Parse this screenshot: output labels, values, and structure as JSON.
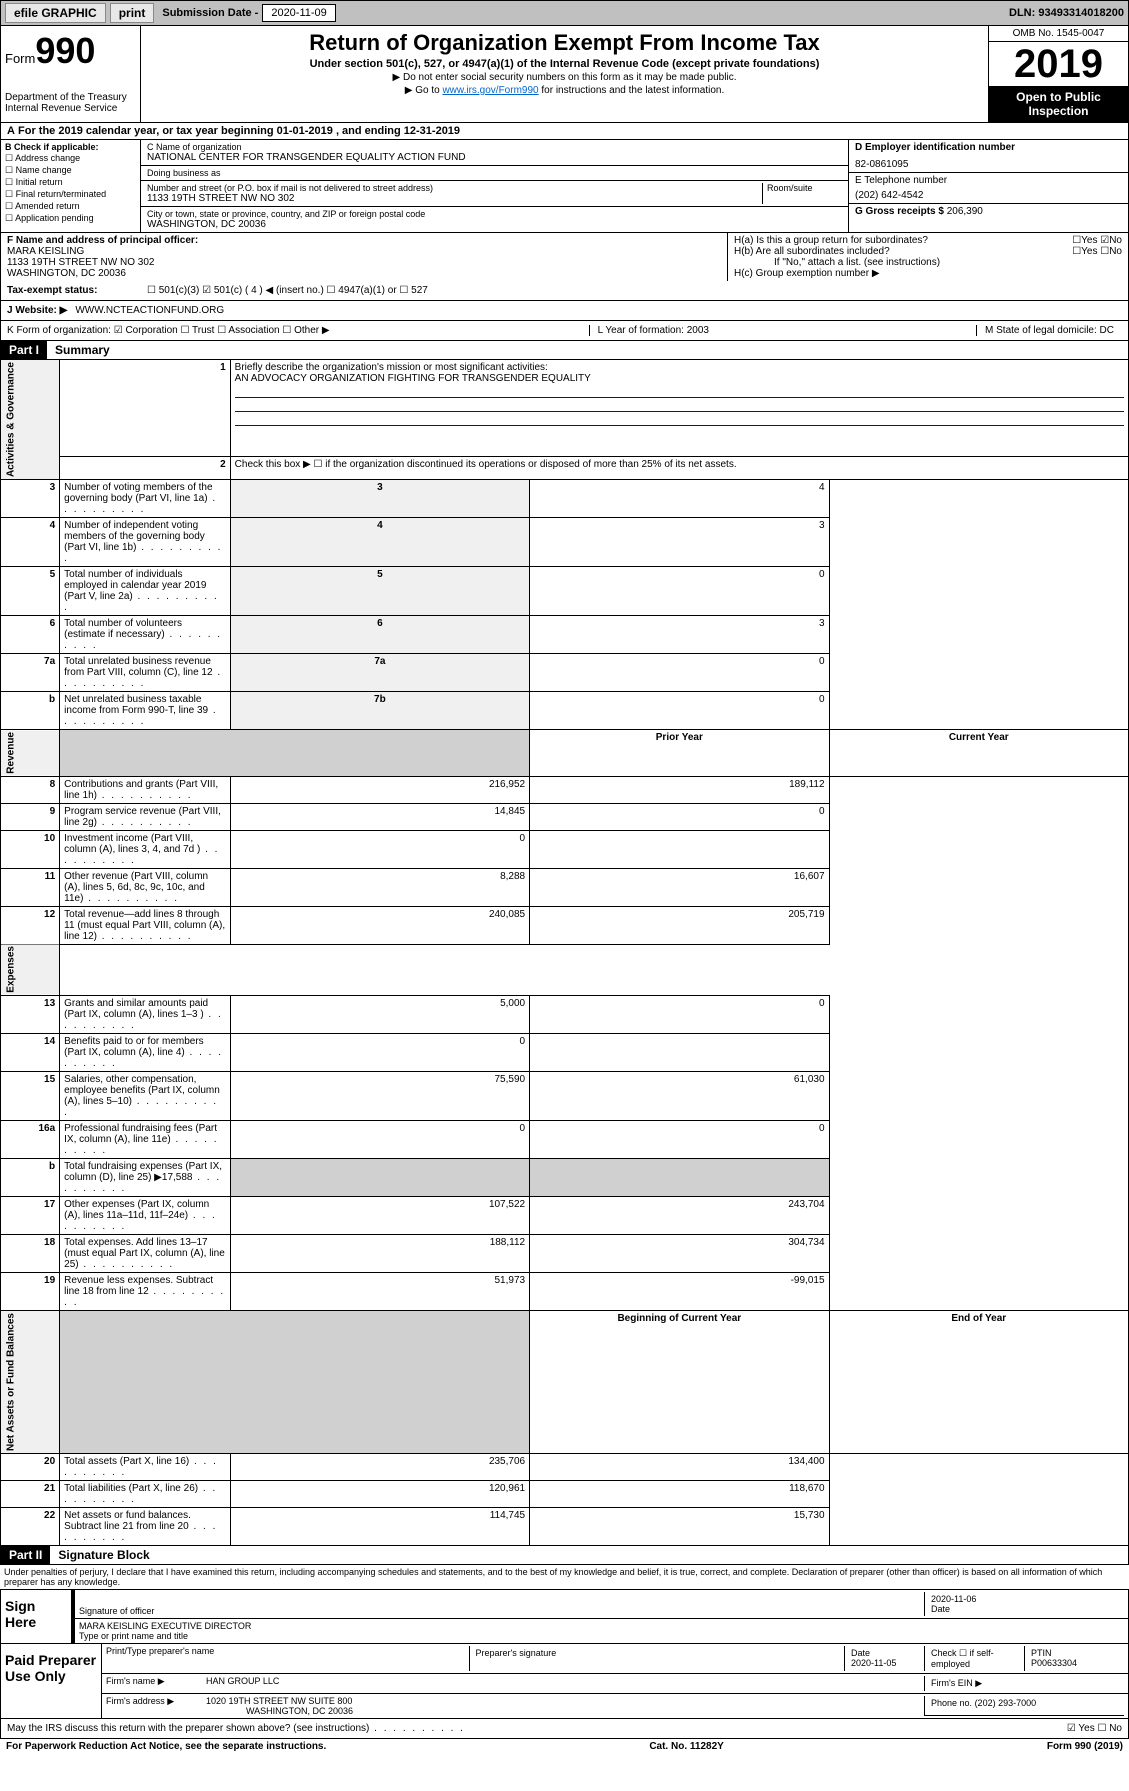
{
  "topbar": {
    "efile": "efile GRAPHIC",
    "print": "print",
    "sub_label": "Submission Date -",
    "sub_date": "2020-11-09",
    "dln": "DLN: 93493314018200"
  },
  "header": {
    "form": "Form",
    "num": "990",
    "dept": "Department of the Treasury\nInternal Revenue Service",
    "title": "Return of Organization Exempt From Income Tax",
    "sub": "Under section 501(c), 527, or 4947(a)(1) of the Internal Revenue Code (except private foundations)",
    "note1": "▶ Do not enter social security numbers on this form as it may be made public.",
    "note2a": "▶ Go to ",
    "note2link": "www.irs.gov/Form990",
    "note2b": " for instructions and the latest information.",
    "omb": "OMB No. 1545-0047",
    "year": "2019",
    "open": "Open to Public Inspection"
  },
  "line_a": "For the 2019 calendar year, or tax year beginning 01-01-2019   , and ending 12-31-2019",
  "col_b": {
    "header": "B Check if applicable:",
    "items": [
      "☐ Address change",
      "☐ Name change",
      "☐ Initial return",
      "☐ Final return/terminated",
      "☐ Amended return",
      "☐ Application pending"
    ]
  },
  "col_c": {
    "name_label": "C Name of organization",
    "name": "NATIONAL CENTER FOR TRANSGENDER EQUALITY ACTION FUND",
    "dba_label": "Doing business as",
    "dba": "",
    "addr_label": "Number and street (or P.O. box if mail is not delivered to street address)",
    "addr": "1133 19TH STREET NW NO 302",
    "room_label": "Room/suite",
    "city_label": "City or town, state or province, country, and ZIP or foreign postal code",
    "city": "WASHINGTON, DC  20036"
  },
  "col_d": {
    "ein_label": "D Employer identification number",
    "ein": "82-0861095",
    "tel_label": "E Telephone number",
    "tel": "(202) 642-4542",
    "gross_label": "G Gross receipts $",
    "gross": "206,390"
  },
  "col_f": {
    "label": "F  Name and address of principal officer:",
    "name": "MARA KEISLING",
    "addr1": "1133 19TH STREET NW NO 302",
    "addr2": "WASHINGTON, DC  20036"
  },
  "col_h": {
    "ha": "H(a)  Is this a group return for subordinates?",
    "ha_ans": "☐Yes ☑No",
    "hb": "H(b)  Are all subordinates included?",
    "hb_ans": "☐Yes ☐No",
    "hb_note": "If \"No,\" attach a list. (see instructions)",
    "hc": "H(c)  Group exemption number ▶"
  },
  "tax_exempt": {
    "label": "Tax-exempt status:",
    "opts": "☐ 501(c)(3)   ☑ 501(c) ( 4 ) ◀ (insert no.)   ☐ 4947(a)(1) or  ☐ 527"
  },
  "website": {
    "label": "J   Website: ▶",
    "val": "WWW.NCTEACTIONFUND.ORG"
  },
  "line_k": {
    "k": "K Form of organization:  ☑ Corporation  ☐ Trust  ☐ Association  ☐ Other ▶",
    "l": "L Year of formation: 2003",
    "m": "M State of legal domicile: DC"
  },
  "part1": {
    "label": "Part I",
    "title": "Summary"
  },
  "summary": {
    "q1": "Briefly describe the organization's mission or most significant activities:",
    "mission": "AN ADVOCACY ORGANIZATION FIGHTING FOR TRANSGENDER EQUALITY",
    "q2": "Check this box ▶ ☐ if the organization discontinued its operations or disposed of more than 25% of its net assets.",
    "lines_gov": [
      {
        "n": "3",
        "t": "Number of voting members of the governing body (Part VI, line 1a)",
        "box": "3",
        "v": "4"
      },
      {
        "n": "4",
        "t": "Number of independent voting members of the governing body (Part VI, line 1b)",
        "box": "4",
        "v": "3"
      },
      {
        "n": "5",
        "t": "Total number of individuals employed in calendar year 2019 (Part V, line 2a)",
        "box": "5",
        "v": "0"
      },
      {
        "n": "6",
        "t": "Total number of volunteers (estimate if necessary)",
        "box": "6",
        "v": "3"
      },
      {
        "n": "7a",
        "t": "Total unrelated business revenue from Part VIII, column (C), line 12",
        "box": "7a",
        "v": "0"
      },
      {
        "n": "b",
        "t": "Net unrelated business taxable income from Form 990-T, line 39",
        "box": "7b",
        "v": "0"
      }
    ],
    "col_prior": "Prior Year",
    "col_current": "Current Year",
    "lines_rev": [
      {
        "n": "8",
        "t": "Contributions and grants (Part VIII, line 1h)",
        "p": "216,952",
        "c": "189,112"
      },
      {
        "n": "9",
        "t": "Program service revenue (Part VIII, line 2g)",
        "p": "14,845",
        "c": "0"
      },
      {
        "n": "10",
        "t": "Investment income (Part VIII, column (A), lines 3, 4, and 7d )",
        "p": "0",
        "c": ""
      },
      {
        "n": "11",
        "t": "Other revenue (Part VIII, column (A), lines 5, 6d, 8c, 9c, 10c, and 11e)",
        "p": "8,288",
        "c": "16,607"
      },
      {
        "n": "12",
        "t": "Total revenue—add lines 8 through 11 (must equal Part VIII, column (A), line 12)",
        "p": "240,085",
        "c": "205,719"
      }
    ],
    "lines_exp": [
      {
        "n": "13",
        "t": "Grants and similar amounts paid (Part IX, column (A), lines 1–3 )",
        "p": "5,000",
        "c": "0"
      },
      {
        "n": "14",
        "t": "Benefits paid to or for members (Part IX, column (A), line 4)",
        "p": "0",
        "c": ""
      },
      {
        "n": "15",
        "t": "Salaries, other compensation, employee benefits (Part IX, column (A), lines 5–10)",
        "p": "75,590",
        "c": "61,030"
      },
      {
        "n": "16a",
        "t": "Professional fundraising fees (Part IX, column (A), line 11e)",
        "p": "0",
        "c": "0"
      },
      {
        "n": "b",
        "t": "Total fundraising expenses (Part IX, column (D), line 25) ▶17,588",
        "p": "",
        "c": "",
        "shaded": true
      },
      {
        "n": "17",
        "t": "Other expenses (Part IX, column (A), lines 11a–11d, 11f–24e)",
        "p": "107,522",
        "c": "243,704"
      },
      {
        "n": "18",
        "t": "Total expenses. Add lines 13–17 (must equal Part IX, column (A), line 25)",
        "p": "188,112",
        "c": "304,734"
      },
      {
        "n": "19",
        "t": "Revenue less expenses. Subtract line 18 from line 12",
        "p": "51,973",
        "c": "-99,015"
      }
    ],
    "col_begin": "Beginning of Current Year",
    "col_end": "End of Year",
    "lines_net": [
      {
        "n": "20",
        "t": "Total assets (Part X, line 16)",
        "p": "235,706",
        "c": "134,400"
      },
      {
        "n": "21",
        "t": "Total liabilities (Part X, line 26)",
        "p": "120,961",
        "c": "118,670"
      },
      {
        "n": "22",
        "t": "Net assets or fund balances. Subtract line 21 from line 20",
        "p": "114,745",
        "c": "15,730"
      }
    ],
    "vert_gov": "Activities & Governance",
    "vert_rev": "Revenue",
    "vert_exp": "Expenses",
    "vert_net": "Net Assets or Fund Balances"
  },
  "part2": {
    "label": "Part II",
    "title": "Signature Block"
  },
  "perjury": "Under penalties of perjury, I declare that I have examined this return, including accompanying schedules and statements, and to the best of my knowledge and belief, it is true, correct, and complete. Declaration of preparer (other than officer) is based on all information of which preparer has any knowledge.",
  "sign": {
    "here": "Sign Here",
    "sig_officer": "Signature of officer",
    "date": "2020-11-06",
    "date_label": "Date",
    "name": "MARA KEISLING  EXECUTIVE DIRECTOR",
    "name_label": "Type or print name and title"
  },
  "paid": {
    "label": "Paid Preparer Use Only",
    "h1": "Print/Type preparer's name",
    "h2": "Preparer's signature",
    "h3": "Date",
    "h3v": "2020-11-05",
    "h4": "Check ☐ if self-employed",
    "h5": "PTIN",
    "h5v": "P00633304",
    "firm_label": "Firm's name    ▶",
    "firm": "HAN GROUP LLC",
    "ein_label": "Firm's EIN ▶",
    "addr_label": "Firm's address ▶",
    "addr": "1020 19TH STREET NW SUITE 800",
    "addr2": "WASHINGTON, DC  20036",
    "phone_label": "Phone no.",
    "phone": "(202) 293-7000"
  },
  "discuss": {
    "text": "May the IRS discuss this return with the preparer shown above? (see instructions)",
    "ans": "☑ Yes   ☐ No"
  },
  "footer": {
    "left": "For Paperwork Reduction Act Notice, see the separate instructions.",
    "mid": "Cat. No. 11282Y",
    "right": "Form 990 (2019)"
  }
}
